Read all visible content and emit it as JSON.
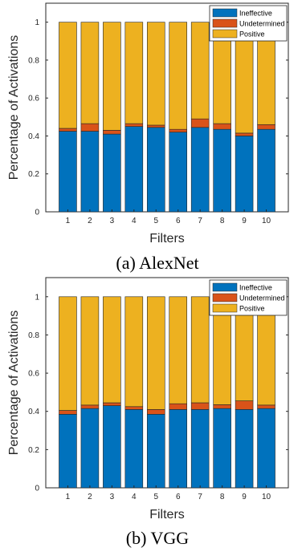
{
  "chart_data": [
    {
      "type": "bar",
      "stacked": true,
      "caption": "(a) AlexNet",
      "xlabel": "Filters",
      "ylabel": "Percentage of Activations",
      "categories": [
        "1",
        "2",
        "3",
        "4",
        "5",
        "6",
        "7",
        "8",
        "9",
        "10"
      ],
      "ylim": [
        0,
        1.1
      ],
      "yticks": [
        "0",
        "0.2",
        "0.4",
        "0.6",
        "0.8",
        "1"
      ],
      "legend_position": "top-right",
      "series": [
        {
          "name": "Ineffective",
          "color": "#0072BD",
          "values": [
            0.425,
            0.425,
            0.41,
            0.45,
            0.445,
            0.42,
            0.445,
            0.435,
            0.4,
            0.435
          ]
        },
        {
          "name": "Undetermined",
          "color": "#D95319",
          "values": [
            0.015,
            0.04,
            0.02,
            0.015,
            0.012,
            0.015,
            0.045,
            0.03,
            0.015,
            0.025
          ]
        },
        {
          "name": "Positive",
          "color": "#EDB120",
          "values": [
            0.56,
            0.535,
            0.57,
            0.535,
            0.543,
            0.565,
            0.51,
            0.535,
            0.585,
            0.54
          ]
        }
      ]
    },
    {
      "type": "bar",
      "stacked": true,
      "caption": "(b) VGG",
      "xlabel": "Filters",
      "ylabel": "Percentage of Activations",
      "categories": [
        "1",
        "2",
        "3",
        "4",
        "5",
        "6",
        "7",
        "8",
        "9",
        "10"
      ],
      "ylim": [
        0,
        1.1
      ],
      "yticks": [
        "0",
        "0.2",
        "0.4",
        "0.6",
        "0.8",
        "1"
      ],
      "legend_position": "top-right",
      "series": [
        {
          "name": "Ineffective",
          "color": "#0072BD",
          "values": [
            0.385,
            0.415,
            0.43,
            0.41,
            0.385,
            0.41,
            0.41,
            0.415,
            0.41,
            0.415
          ]
        },
        {
          "name": "Undetermined",
          "color": "#D95319",
          "values": [
            0.02,
            0.018,
            0.015,
            0.015,
            0.025,
            0.03,
            0.035,
            0.02,
            0.045,
            0.018
          ]
        },
        {
          "name": "Positive",
          "color": "#EDB120",
          "values": [
            0.595,
            0.567,
            0.555,
            0.575,
            0.59,
            0.56,
            0.555,
            0.565,
            0.545,
            0.567
          ]
        }
      ]
    }
  ]
}
